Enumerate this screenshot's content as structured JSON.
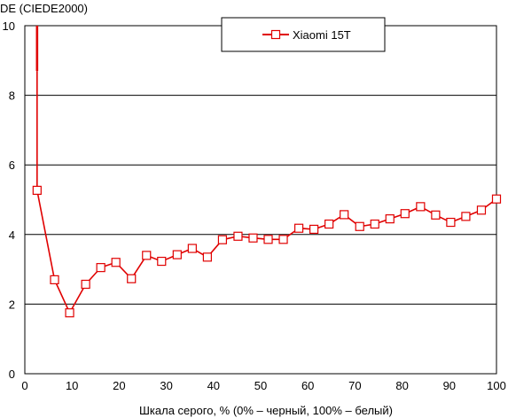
{
  "chart_data": {
    "type": "line",
    "title": "",
    "ylabel": "DE (CIEDE2000)",
    "xlabel": "Шкала серого, % (0% – черный, 100% – белый)",
    "xlim": [
      0,
      100
    ],
    "ylim": [
      0,
      10
    ],
    "xticks": [
      0,
      10,
      20,
      30,
      40,
      50,
      60,
      70,
      80,
      90,
      100
    ],
    "yticks": [
      0,
      2,
      4,
      6,
      8,
      10
    ],
    "grid": "horizontal",
    "legend_position": "top-center",
    "series": [
      {
        "name": "Xiaomi 15T",
        "color": "#e00000",
        "marker": "square-open",
        "continuation_from_top": {
          "x": 2.6,
          "y": 10.0
        },
        "spike_x": 2.6,
        "spike_y": 8.7,
        "x": [
          2.6,
          6.3,
          9.5,
          12.9,
          16.1,
          19.3,
          22.6,
          25.8,
          29.0,
          32.3,
          35.5,
          38.7,
          41.9,
          45.2,
          48.4,
          51.6,
          54.8,
          58.1,
          61.3,
          64.5,
          67.7,
          71.0,
          74.2,
          77.4,
          80.6,
          83.9,
          87.1,
          90.3,
          93.5,
          96.8,
          100.0
        ],
        "y": [
          5.27,
          2.7,
          1.75,
          2.57,
          3.05,
          3.2,
          2.73,
          3.4,
          3.23,
          3.42,
          3.6,
          3.35,
          3.85,
          3.95,
          3.9,
          3.86,
          3.86,
          4.18,
          4.15,
          4.3,
          4.57,
          4.23,
          4.3,
          4.45,
          4.6,
          4.8,
          4.56,
          4.35,
          4.52,
          4.7,
          5.02
        ]
      }
    ]
  }
}
